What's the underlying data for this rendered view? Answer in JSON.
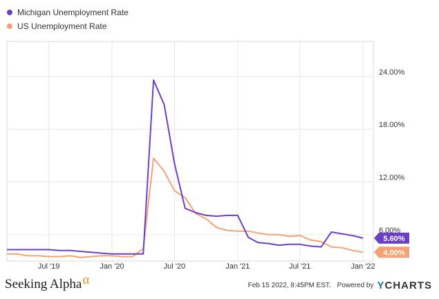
{
  "legend": [
    {
      "label": "Michigan Unemployment Rate",
      "color": "#6a3fc8"
    },
    {
      "label": "US Unemployment Rate",
      "color": "#f5a273"
    }
  ],
  "chart_data": {
    "type": "line",
    "x_range": [
      "2019-03-01",
      "2022-01-31"
    ],
    "ylim": [
      3.0,
      28.0
    ],
    "y_ticks": [
      6,
      12,
      18,
      24
    ],
    "y_tick_labels": [
      "6.00%",
      "12.00%",
      "18.00%",
      "24.00%"
    ],
    "x_ticks": [
      {
        "date": "2019-07-01",
        "label": "Jul '19"
      },
      {
        "date": "2020-01-01",
        "label": "Jan '20"
      },
      {
        "date": "2020-07-01",
        "label": "Jul '20"
      },
      {
        "date": "2021-01-01",
        "label": "Jan '21"
      },
      {
        "date": "2021-07-01",
        "label": "Jul '21"
      },
      {
        "date": "2022-01-01",
        "label": "Jan '22"
      }
    ],
    "grid": true,
    "series": [
      {
        "name": "Michigan Unemployment Rate",
        "color": "#6a3fc8",
        "end_label": "5.60%",
        "points": [
          [
            "2019-03-01",
            4.3
          ],
          [
            "2019-04-01",
            4.3
          ],
          [
            "2019-05-01",
            4.3
          ],
          [
            "2019-06-01",
            4.3
          ],
          [
            "2019-07-01",
            4.3
          ],
          [
            "2019-08-01",
            4.2
          ],
          [
            "2019-09-01",
            4.2
          ],
          [
            "2019-10-01",
            4.1
          ],
          [
            "2019-11-01",
            4.0
          ],
          [
            "2019-12-01",
            3.9
          ],
          [
            "2020-01-01",
            3.8
          ],
          [
            "2020-02-01",
            3.8
          ],
          [
            "2020-03-01",
            3.8
          ],
          [
            "2020-04-01",
            3.8
          ],
          [
            "2020-05-01",
            23.6
          ],
          [
            "2020-06-01",
            20.8
          ],
          [
            "2020-07-01",
            14.1
          ],
          [
            "2020-08-01",
            9.0
          ],
          [
            "2020-09-01",
            8.5
          ],
          [
            "2020-10-01",
            8.2
          ],
          [
            "2020-11-01",
            8.1
          ],
          [
            "2020-12-01",
            8.2
          ],
          [
            "2021-01-01",
            8.2
          ],
          [
            "2021-02-01",
            5.7
          ],
          [
            "2021-03-01",
            5.1
          ],
          [
            "2021-04-01",
            5.0
          ],
          [
            "2021-05-01",
            4.8
          ],
          [
            "2021-06-01",
            4.9
          ],
          [
            "2021-07-01",
            4.9
          ],
          [
            "2021-08-01",
            4.7
          ],
          [
            "2021-09-01",
            4.6
          ],
          [
            "2021-10-01",
            6.3
          ],
          [
            "2021-11-01",
            6.1
          ],
          [
            "2021-12-01",
            5.9
          ],
          [
            "2022-01-01",
            5.6
          ]
        ]
      },
      {
        "name": "US Unemployment Rate",
        "color": "#f5a273",
        "end_label": "4.00%",
        "points": [
          [
            "2019-03-01",
            3.8
          ],
          [
            "2019-04-01",
            3.8
          ],
          [
            "2019-05-01",
            3.6
          ],
          [
            "2019-06-01",
            3.6
          ],
          [
            "2019-07-01",
            3.5
          ],
          [
            "2019-08-01",
            3.5
          ],
          [
            "2019-09-01",
            3.6
          ],
          [
            "2019-10-01",
            3.4
          ],
          [
            "2019-11-01",
            3.5
          ],
          [
            "2019-12-01",
            3.6
          ],
          [
            "2020-01-01",
            3.6
          ],
          [
            "2020-02-01",
            3.5
          ],
          [
            "2020-03-01",
            3.5
          ],
          [
            "2020-04-01",
            4.4
          ],
          [
            "2020-05-01",
            14.7
          ],
          [
            "2020-06-01",
            13.2
          ],
          [
            "2020-07-01",
            11.0
          ],
          [
            "2020-08-01",
            10.2
          ],
          [
            "2020-09-01",
            8.4
          ],
          [
            "2020-10-01",
            7.8
          ],
          [
            "2020-11-01",
            6.8
          ],
          [
            "2020-12-01",
            6.5
          ],
          [
            "2021-01-01",
            6.4
          ],
          [
            "2021-02-01",
            6.4
          ],
          [
            "2021-03-01",
            6.2
          ],
          [
            "2021-04-01",
            6.0
          ],
          [
            "2021-05-01",
            6.0
          ],
          [
            "2021-06-01",
            5.8
          ],
          [
            "2021-07-01",
            5.9
          ],
          [
            "2021-08-01",
            5.4
          ],
          [
            "2021-09-01",
            5.2
          ],
          [
            "2021-10-01",
            4.6
          ],
          [
            "2021-11-01",
            4.5
          ],
          [
            "2021-12-01",
            4.2
          ],
          [
            "2022-01-01",
            4.0
          ]
        ]
      }
    ]
  },
  "footer": {
    "brand": "Seeking Alpha",
    "brand_symbol": "α",
    "timestamp": "Feb 15 2022, 8:45PM EST.",
    "powered_by": "Powered by",
    "ycharts_y": "Y",
    "ycharts_rest": "CHARTS"
  }
}
